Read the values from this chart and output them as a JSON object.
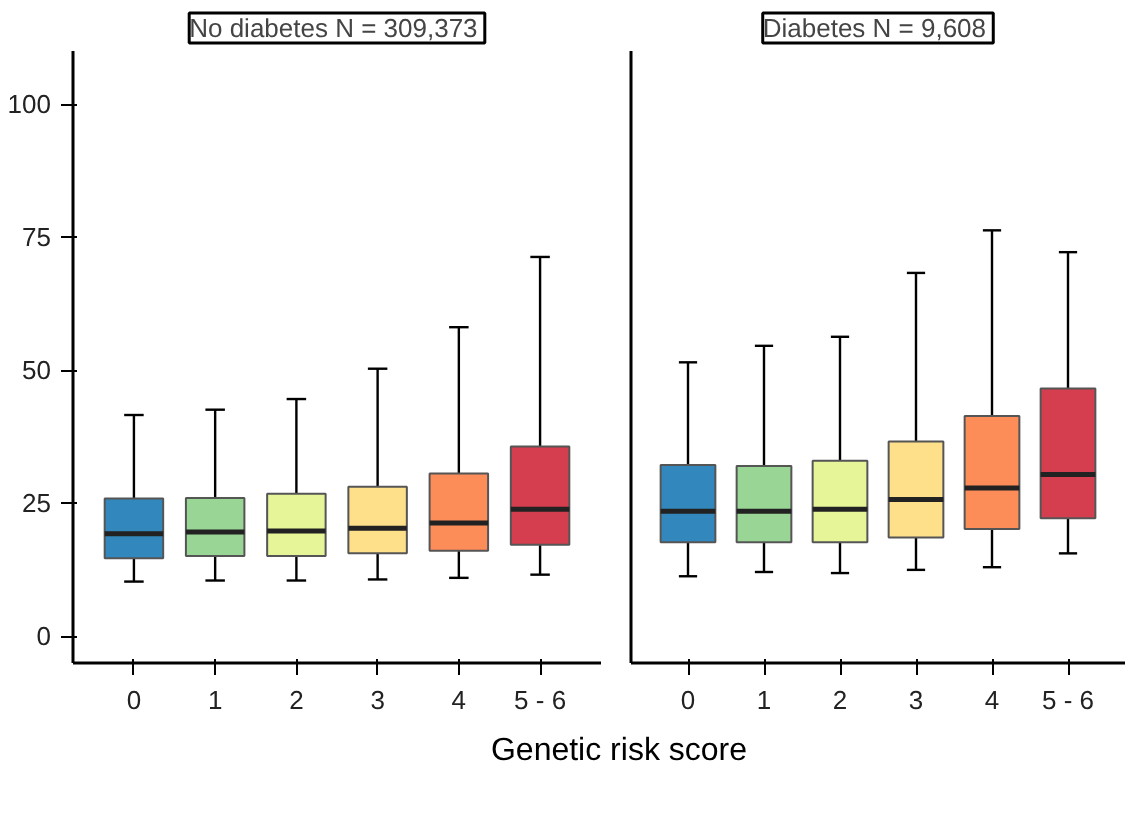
{
  "chart_data": [
    {
      "type": "box",
      "title": "No diabetes  N = 309,373",
      "xlabel": "Genetic risk score",
      "categories": [
        "0",
        "1",
        "2",
        "3",
        "4",
        "5 - 6"
      ],
      "colors": [
        "#3288bd",
        "#99d594",
        "#e6f598",
        "#fee08b",
        "#fc8d59",
        "#d53e4f"
      ],
      "boxes": [
        {
          "low": 10.3,
          "q1": 14.7,
          "median": 19.3,
          "q3": 25.9,
          "high": 41.6
        },
        {
          "low": 10.5,
          "q1": 15.1,
          "median": 19.6,
          "q3": 26.0,
          "high": 42.6
        },
        {
          "low": 10.5,
          "q1": 15.1,
          "median": 19.8,
          "q3": 26.8,
          "high": 44.6
        },
        {
          "low": 10.7,
          "q1": 15.6,
          "median": 20.3,
          "q3": 28.1,
          "high": 50.3
        },
        {
          "low": 11.0,
          "q1": 16.1,
          "median": 21.3,
          "q3": 30.6,
          "high": 58.1
        },
        {
          "low": 11.6,
          "q1": 17.2,
          "median": 23.9,
          "q3": 35.7,
          "high": 71.3
        }
      ],
      "ylim": [
        -5,
        110
      ],
      "yticks": [
        0,
        25,
        50,
        75,
        100
      ]
    },
    {
      "type": "box",
      "title": "Diabetes  N = 9,608",
      "categories": [
        "0",
        "1",
        "2",
        "3",
        "4",
        "5 - 6"
      ],
      "colors": [
        "#3288bd",
        "#99d594",
        "#e6f598",
        "#fee08b",
        "#fc8d59",
        "#d53e4f"
      ],
      "boxes": [
        {
          "low": 11.3,
          "q1": 17.7,
          "median": 23.5,
          "q3": 32.2,
          "high": 51.5
        },
        {
          "low": 12.1,
          "q1": 17.7,
          "median": 23.5,
          "q3": 32.0,
          "high": 54.6
        },
        {
          "low": 11.9,
          "q1": 17.7,
          "median": 23.9,
          "q3": 33.0,
          "high": 56.3
        },
        {
          "low": 12.5,
          "q1": 18.6,
          "median": 25.7,
          "q3": 36.6,
          "high": 68.3
        },
        {
          "low": 13.0,
          "q1": 20.2,
          "median": 27.9,
          "q3": 41.4,
          "high": 76.3
        },
        {
          "low": 15.6,
          "q1": 22.2,
          "median": 30.4,
          "q3": 46.6,
          "high": 72.2
        }
      ],
      "ylim": [
        -5,
        110
      ],
      "yticks": [
        0,
        25,
        50,
        75,
        100
      ],
      "tick_labels": "x"
    }
  ]
}
